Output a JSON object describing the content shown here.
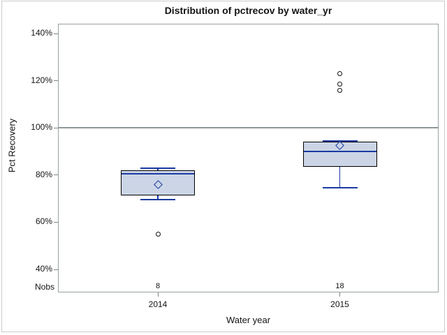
{
  "chart_data": {
    "type": "boxplot",
    "title": "Distribution of pctrecov by water_yr",
    "xlabel": "Water year",
    "ylabel": "Pct Recovery",
    "categories": [
      "2014",
      "2015"
    ],
    "yaxis": {
      "ticks": [
        40,
        60,
        80,
        100,
        120,
        140
      ],
      "tick_labels": [
        "40%",
        "60%",
        "80%",
        "100%",
        "120%",
        "140%"
      ],
      "format": "percent"
    },
    "reference_line": 100,
    "grid": false,
    "legend": false,
    "nobs": {
      "label": "Nobs",
      "values": [
        "8",
        "18"
      ]
    },
    "series": [
      {
        "category": "2014",
        "n": 8,
        "whisker_low": 69.5,
        "q1": 71.5,
        "median": 80.5,
        "q3": 82,
        "whisker_high": 83,
        "mean": 76,
        "outliers": [
          55
        ]
      },
      {
        "category": "2015",
        "n": 18,
        "whisker_low": 74.5,
        "q1": 83.5,
        "median": 90,
        "q3": 94,
        "whisker_high": 94.5,
        "mean": 92.5,
        "outliers": [
          116,
          118.5,
          123
        ]
      }
    ]
  },
  "colors": {
    "box_fill": "#cbd5e6",
    "box_border": "#000000",
    "line_blue": "#1a3aa0",
    "outlier_stroke": "#111111",
    "reference_line": "#8f979a",
    "axis_frame": "#98a0a3",
    "tick": "#7d8486",
    "text": "#131313"
  }
}
